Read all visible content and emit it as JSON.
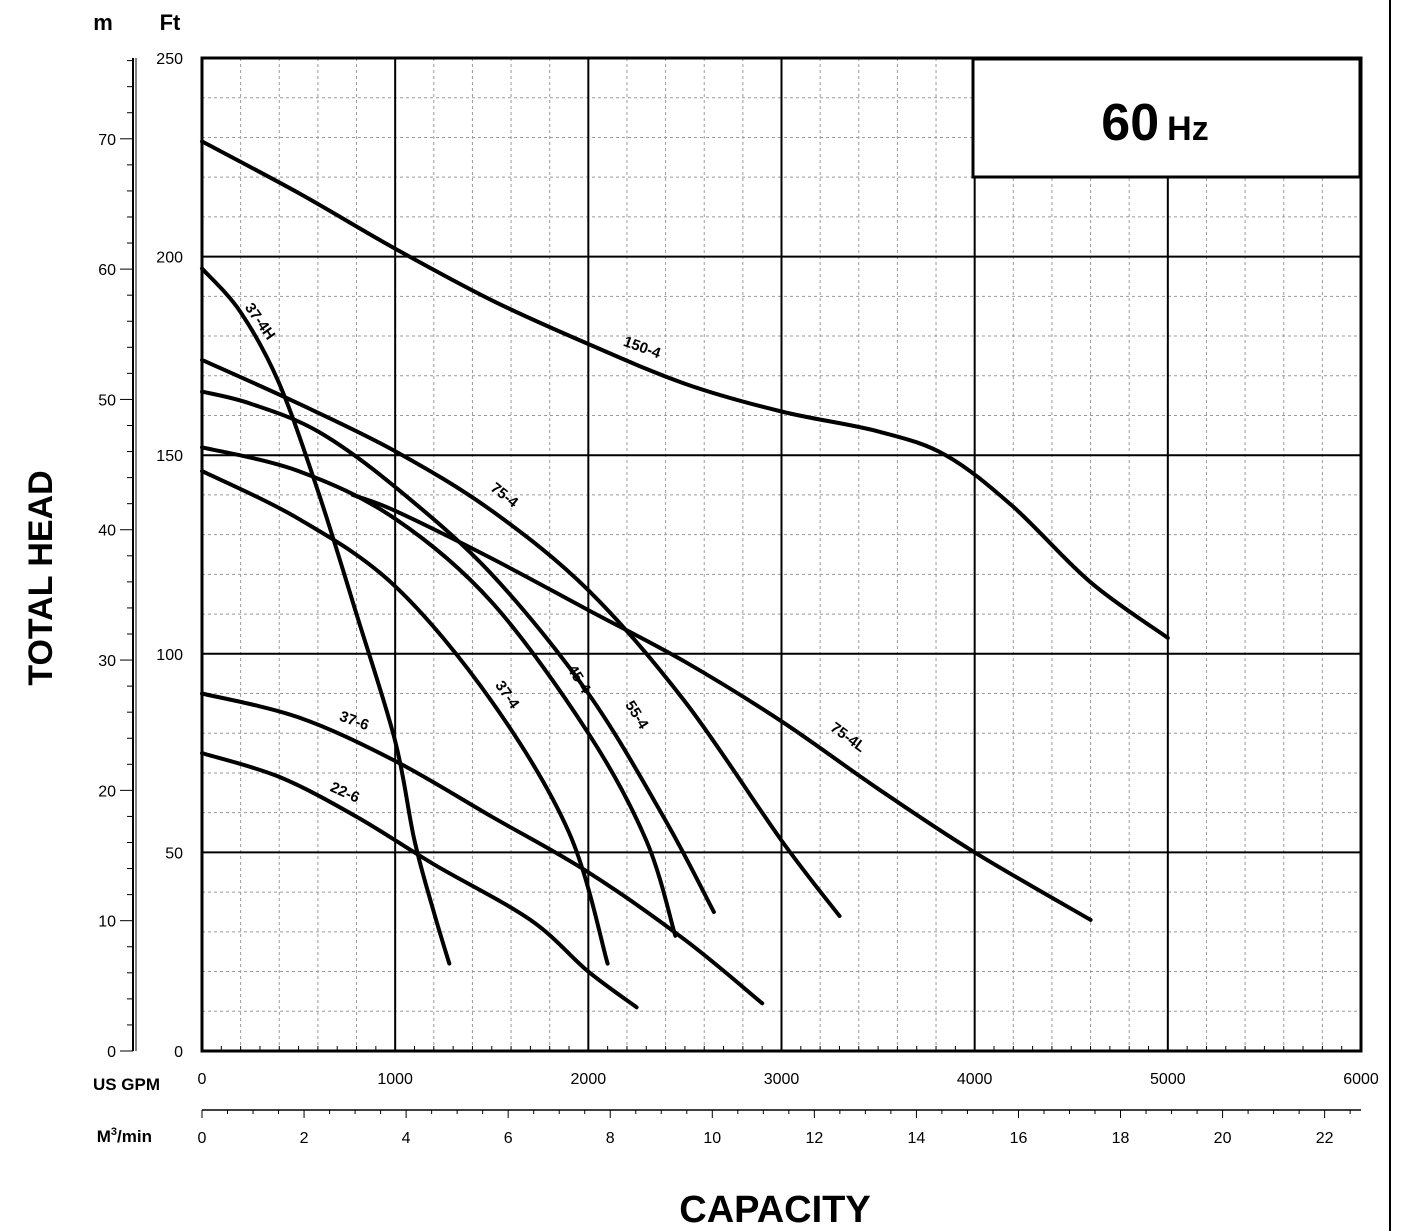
{
  "chart_data": {
    "type": "line",
    "badge": {
      "value": "60",
      "unit": "Hz"
    },
    "ylabel": "TOTAL HEAD",
    "xlabel": "CAPACITY",
    "y_units": {
      "metric": "m",
      "imperial": "Ft"
    },
    "x_units": {
      "primary": "US GPM",
      "secondary_prefix": "M",
      "secondary_sup": "3",
      "secondary_suffix": "/min"
    },
    "xlim": [
      0,
      6000
    ],
    "ylim_ft": [
      0,
      250
    ],
    "ylim_m": [
      0,
      76.2
    ],
    "x_ticks": [
      "0",
      "1000",
      "2000",
      "3000",
      "4000",
      "5000",
      "6000"
    ],
    "x_ticks_values": [
      0,
      1000,
      2000,
      3000,
      4000,
      5000,
      6000
    ],
    "x2_ticks": [
      "0",
      "2",
      "4",
      "6",
      "8",
      "10",
      "12",
      "14",
      "16",
      "18",
      "20",
      "22"
    ],
    "x2_ticks_values": [
      0,
      2,
      4,
      6,
      8,
      10,
      12,
      14,
      16,
      18,
      20,
      22
    ],
    "y_ticks_ft": [
      "0",
      "50",
      "100",
      "150",
      "200",
      "250"
    ],
    "y_ticks_ft_values": [
      0,
      50,
      100,
      150,
      200,
      250
    ],
    "y_ticks_m": [
      "0",
      "10",
      "20",
      "30",
      "40",
      "50",
      "60",
      "70"
    ],
    "y_ticks_m_values": [
      0,
      10,
      20,
      30,
      40,
      50,
      60,
      70
    ],
    "grid": true,
    "series": [
      {
        "name": "150-4",
        "x": [
          0,
          500,
          1000,
          1500,
          2000,
          2500,
          3000,
          3500,
          3850,
          4200,
          4600,
          5000
        ],
        "y": [
          229,
          216,
          202,
          189,
          178,
          168,
          161,
          156,
          150,
          137,
          118,
          104
        ]
      },
      {
        "name": "37-4H",
        "x": [
          0,
          200,
          400,
          600,
          800,
          1000,
          1100,
          1200,
          1280
        ],
        "y": [
          197,
          186,
          168,
          141,
          110,
          78,
          53,
          35,
          22
        ]
      },
      {
        "name": "75-4",
        "x": [
          0,
          500,
          1000,
          1500,
          2000,
          2500,
          3000,
          3300
        ],
        "y": [
          174,
          163,
          151,
          136,
          116,
          88,
          53,
          34
        ]
      },
      {
        "name": "55-4",
        "x": [
          0,
          250,
          600,
          1000,
          1500,
          2000,
          2400,
          2650
        ],
        "y": [
          166,
          163,
          156,
          142,
          120,
          90,
          58,
          35
        ]
      },
      {
        "name": "45-4",
        "x": [
          0,
          500,
          1000,
          1500,
          2000,
          2300,
          2450
        ],
        "y": [
          152,
          146,
          134,
          113,
          80,
          53,
          29
        ]
      },
      {
        "name": "37-4",
        "x": [
          0,
          500,
          1000,
          1500,
          1900,
          2100
        ],
        "y": [
          146,
          134,
          117,
          88,
          55,
          22
        ]
      },
      {
        "name": "75-4L",
        "x": [
          780,
          1000,
          1500,
          2000,
          2500,
          3000,
          3500,
          4000,
          4600
        ],
        "y": [
          140,
          136,
          124,
          111,
          98,
          83,
          66,
          50,
          33
        ]
      },
      {
        "name": "37-6",
        "x": [
          0,
          500,
          1000,
          1500,
          2000,
          2500,
          2900
        ],
        "y": [
          90,
          84,
          73,
          59,
          45,
          28,
          12
        ]
      },
      {
        "name": "22-6",
        "x": [
          0,
          400,
          800,
          1200,
          1700,
          2000,
          2250
        ],
        "y": [
          75,
          69,
          59,
          47,
          33,
          20,
          11
        ]
      }
    ]
  }
}
